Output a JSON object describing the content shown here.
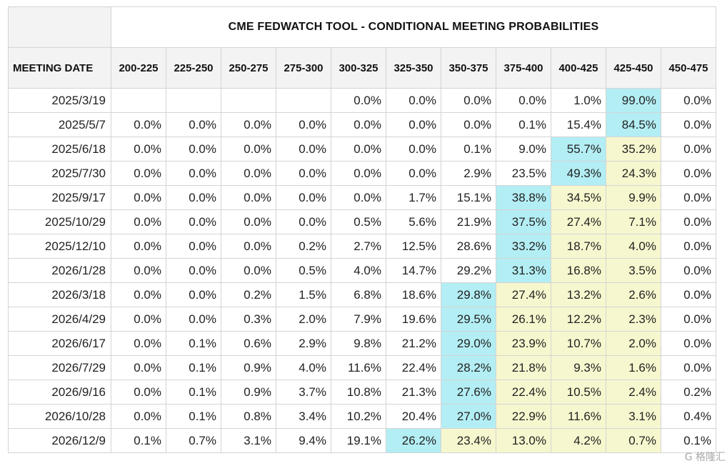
{
  "title": "CME FEDWATCH TOOL - CONDITIONAL MEETING PROBABILITIES",
  "date_header": "MEETING DATE",
  "columns": [
    "200-225",
    "225-250",
    "250-275",
    "275-300",
    "300-325",
    "325-350",
    "350-375",
    "375-400",
    "400-425",
    "425-450",
    "450-475"
  ],
  "rows": [
    {
      "date": "2025/3/19",
      "values": [
        "",
        "",
        "",
        "",
        "0.0%",
        "0.0%",
        "0.0%",
        "0.0%",
        "1.0%",
        "99.0%",
        "0.0%"
      ],
      "highlight": [
        0,
        0,
        0,
        0,
        0,
        0,
        0,
        0,
        0,
        2,
        0
      ]
    },
    {
      "date": "2025/5/7",
      "values": [
        "0.0%",
        "0.0%",
        "0.0%",
        "0.0%",
        "0.0%",
        "0.0%",
        "0.0%",
        "0.1%",
        "15.4%",
        "84.5%",
        "0.0%"
      ],
      "highlight": [
        0,
        0,
        0,
        0,
        0,
        0,
        0,
        0,
        0,
        2,
        0
      ]
    },
    {
      "date": "2025/6/18",
      "values": [
        "0.0%",
        "0.0%",
        "0.0%",
        "0.0%",
        "0.0%",
        "0.0%",
        "0.1%",
        "9.0%",
        "55.7%",
        "35.2%",
        "0.0%"
      ],
      "highlight": [
        0,
        0,
        0,
        0,
        0,
        0,
        0,
        0,
        2,
        1,
        0
      ]
    },
    {
      "date": "2025/7/30",
      "values": [
        "0.0%",
        "0.0%",
        "0.0%",
        "0.0%",
        "0.0%",
        "0.0%",
        "2.9%",
        "23.5%",
        "49.3%",
        "24.3%",
        "0.0%"
      ],
      "highlight": [
        0,
        0,
        0,
        0,
        0,
        0,
        0,
        0,
        2,
        1,
        0
      ]
    },
    {
      "date": "2025/9/17",
      "values": [
        "0.0%",
        "0.0%",
        "0.0%",
        "0.0%",
        "0.0%",
        "1.7%",
        "15.1%",
        "38.8%",
        "34.5%",
        "9.9%",
        "0.0%"
      ],
      "highlight": [
        0,
        0,
        0,
        0,
        0,
        0,
        0,
        2,
        1,
        1,
        0
      ]
    },
    {
      "date": "2025/10/29",
      "values": [
        "0.0%",
        "0.0%",
        "0.0%",
        "0.0%",
        "0.5%",
        "5.6%",
        "21.9%",
        "37.5%",
        "27.4%",
        "7.1%",
        "0.0%"
      ],
      "highlight": [
        0,
        0,
        0,
        0,
        0,
        0,
        0,
        2,
        1,
        1,
        0
      ]
    },
    {
      "date": "2025/12/10",
      "values": [
        "0.0%",
        "0.0%",
        "0.0%",
        "0.2%",
        "2.7%",
        "12.5%",
        "28.6%",
        "33.2%",
        "18.7%",
        "4.0%",
        "0.0%"
      ],
      "highlight": [
        0,
        0,
        0,
        0,
        0,
        0,
        0,
        2,
        1,
        1,
        0
      ]
    },
    {
      "date": "2026/1/28",
      "values": [
        "0.0%",
        "0.0%",
        "0.0%",
        "0.5%",
        "4.0%",
        "14.7%",
        "29.2%",
        "31.3%",
        "16.8%",
        "3.5%",
        "0.0%"
      ],
      "highlight": [
        0,
        0,
        0,
        0,
        0,
        0,
        0,
        2,
        1,
        1,
        0
      ]
    },
    {
      "date": "2026/3/18",
      "values": [
        "0.0%",
        "0.0%",
        "0.2%",
        "1.5%",
        "6.8%",
        "18.6%",
        "29.8%",
        "27.4%",
        "13.2%",
        "2.6%",
        "0.0%"
      ],
      "highlight": [
        0,
        0,
        0,
        0,
        0,
        0,
        2,
        1,
        1,
        1,
        0
      ]
    },
    {
      "date": "2026/4/29",
      "values": [
        "0.0%",
        "0.0%",
        "0.3%",
        "2.0%",
        "7.9%",
        "19.6%",
        "29.5%",
        "26.1%",
        "12.2%",
        "2.3%",
        "0.0%"
      ],
      "highlight": [
        0,
        0,
        0,
        0,
        0,
        0,
        2,
        1,
        1,
        1,
        0
      ]
    },
    {
      "date": "2026/6/17",
      "values": [
        "0.0%",
        "0.1%",
        "0.6%",
        "2.9%",
        "9.8%",
        "21.2%",
        "29.0%",
        "23.9%",
        "10.7%",
        "2.0%",
        "0.0%"
      ],
      "highlight": [
        0,
        0,
        0,
        0,
        0,
        0,
        2,
        1,
        1,
        1,
        0
      ]
    },
    {
      "date": "2026/7/29",
      "values": [
        "0.0%",
        "0.1%",
        "0.9%",
        "4.0%",
        "11.6%",
        "22.4%",
        "28.2%",
        "21.8%",
        "9.3%",
        "1.6%",
        "0.0%"
      ],
      "highlight": [
        0,
        0,
        0,
        0,
        0,
        0,
        2,
        1,
        1,
        1,
        0
      ]
    },
    {
      "date": "2026/9/16",
      "values": [
        "0.0%",
        "0.1%",
        "0.9%",
        "3.7%",
        "10.8%",
        "21.3%",
        "27.6%",
        "22.4%",
        "10.5%",
        "2.4%",
        "0.2%"
      ],
      "highlight": [
        0,
        0,
        0,
        0,
        0,
        0,
        2,
        1,
        1,
        1,
        0
      ]
    },
    {
      "date": "2026/10/28",
      "values": [
        "0.0%",
        "0.1%",
        "0.8%",
        "3.4%",
        "10.2%",
        "20.4%",
        "27.0%",
        "22.9%",
        "11.6%",
        "3.1%",
        "0.4%"
      ],
      "highlight": [
        0,
        0,
        0,
        0,
        0,
        0,
        2,
        1,
        1,
        1,
        0
      ]
    },
    {
      "date": "2026/12/9",
      "values": [
        "0.1%",
        "0.7%",
        "3.1%",
        "9.4%",
        "19.1%",
        "26.2%",
        "23.4%",
        "13.0%",
        "4.2%",
        "0.7%",
        "0.1%"
      ],
      "highlight": [
        0,
        0,
        0,
        0,
        0,
        2,
        1,
        1,
        1,
        1,
        0
      ]
    }
  ],
  "colors": {
    "max_highlight": "#b3eef4",
    "near_highlight": "#f7f7cf",
    "header_bg": "#f3f3f3",
    "border": "#d4d4d4"
  },
  "watermark": "G 格隆汇"
}
